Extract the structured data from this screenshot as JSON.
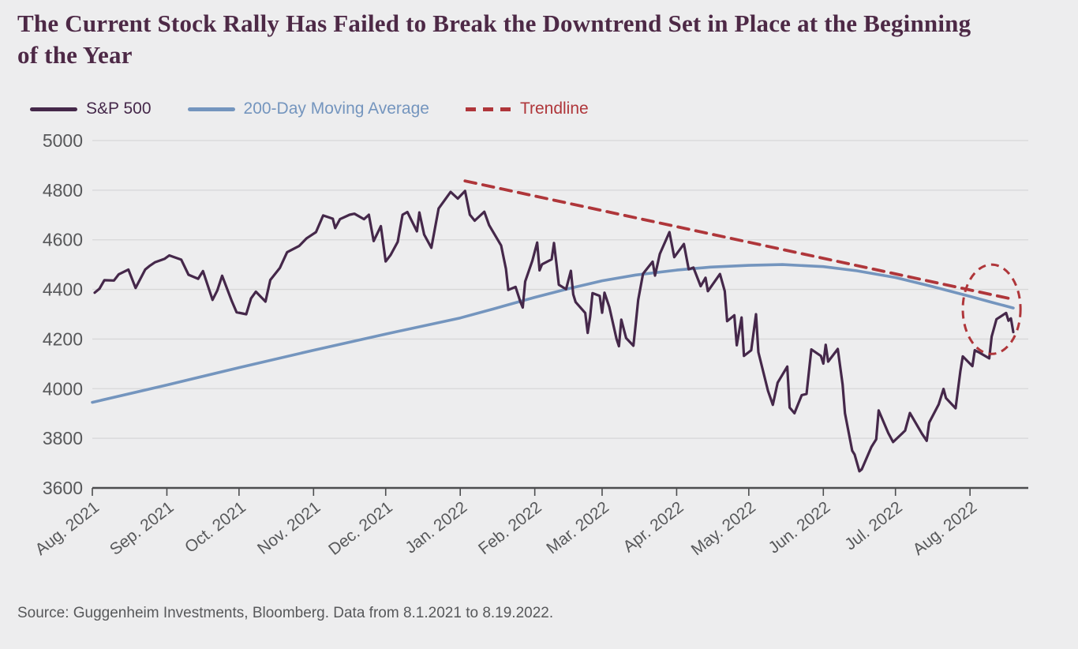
{
  "page": {
    "background": "#EDEDEE"
  },
  "title": {
    "line1": "The Current Stock Rally Has Failed to Break the Downtrend Set in Place at the Beginning",
    "line2": "of the Year"
  },
  "legend": [
    {
      "label": "S&P 500",
      "color": "#45284A",
      "style": "solid"
    },
    {
      "label": "200-Day Moving Average",
      "color": "#7495BE",
      "style": "solid"
    },
    {
      "label": "Trendline",
      "color": "#AF363A",
      "style": "dashed"
    }
  ],
  "source": "Source: Guggenheim Investments, Bloomberg. Data from 8.1.2021 to 8.19.2022.",
  "chart_data": {
    "type": "line",
    "x_range": [
      "2021-08-01",
      "2022-08-19"
    ],
    "ylim": [
      3600,
      5000
    ],
    "y_ticks": [
      5000,
      4800,
      4600,
      4400,
      4200,
      4000,
      3800,
      3600
    ],
    "x_tick_dates": [
      "2021-08-01",
      "2021-09-01",
      "2021-10-01",
      "2021-11-01",
      "2021-12-01",
      "2022-01-01",
      "2022-02-01",
      "2022-03-01",
      "2022-04-01",
      "2022-05-01",
      "2022-06-01",
      "2022-07-01",
      "2022-08-01"
    ],
    "x_tick_labels": [
      "Aug. 2021",
      "Sep. 2021",
      "Oct. 2021",
      "Nov. 2021",
      "Dec. 2021",
      "Jan. 2022",
      "Feb. 2022",
      "Mar. 2022",
      "Apr. 2022",
      "May. 2022",
      "Jun. 2022",
      "Jul. 2022",
      "Aug. 2022"
    ],
    "grid": "horizontal",
    "legend_position": "top-left",
    "series": [
      {
        "name": "200-Day Moving Average",
        "data_name": "moving-average-line",
        "color": "#7495BE",
        "width": 3.6,
        "points": [
          [
            "2021-08-01",
            3945
          ],
          [
            "2021-09-01",
            4015
          ],
          [
            "2021-10-01",
            4085
          ],
          [
            "2021-11-01",
            4155
          ],
          [
            "2021-12-01",
            4220
          ],
          [
            "2022-01-01",
            4285
          ],
          [
            "2022-01-15",
            4322
          ],
          [
            "2022-02-01",
            4368
          ],
          [
            "2022-02-15",
            4403
          ],
          [
            "2022-03-01",
            4435
          ],
          [
            "2022-03-15",
            4458
          ],
          [
            "2022-04-01",
            4478
          ],
          [
            "2022-04-15",
            4490
          ],
          [
            "2022-05-01",
            4497
          ],
          [
            "2022-05-15",
            4500
          ],
          [
            "2022-06-01",
            4492
          ],
          [
            "2022-06-15",
            4475
          ],
          [
            "2022-07-01",
            4448
          ],
          [
            "2022-07-15",
            4415
          ],
          [
            "2022-08-01",
            4372
          ],
          [
            "2022-08-10",
            4348
          ],
          [
            "2022-08-19",
            4325
          ]
        ]
      },
      {
        "name": "Trendline",
        "data_name": "trendline",
        "color": "#AF363A",
        "width": 3.8,
        "dash": "14 9",
        "points": [
          [
            "2022-01-03",
            4837
          ],
          [
            "2022-08-19",
            4360
          ]
        ]
      },
      {
        "name": "S&P 500",
        "data_name": "sp500-line",
        "color": "#45284A",
        "width": 3.2,
        "points": [
          [
            "2021-08-02",
            4387
          ],
          [
            "2021-08-04",
            4403
          ],
          [
            "2021-08-06",
            4437
          ],
          [
            "2021-08-10",
            4436
          ],
          [
            "2021-08-12",
            4461
          ],
          [
            "2021-08-16",
            4480
          ],
          [
            "2021-08-19",
            4406
          ],
          [
            "2021-08-23",
            4480
          ],
          [
            "2021-08-25",
            4496
          ],
          [
            "2021-08-27",
            4509
          ],
          [
            "2021-08-31",
            4523
          ],
          [
            "2021-09-02",
            4537
          ],
          [
            "2021-09-07",
            4520
          ],
          [
            "2021-09-10",
            4459
          ],
          [
            "2021-09-14",
            4443
          ],
          [
            "2021-09-16",
            4474
          ],
          [
            "2021-09-20",
            4358
          ],
          [
            "2021-09-22",
            4396
          ],
          [
            "2021-09-24",
            4455
          ],
          [
            "2021-09-28",
            4353
          ],
          [
            "2021-09-30",
            4308
          ],
          [
            "2021-10-04",
            4300
          ],
          [
            "2021-10-06",
            4364
          ],
          [
            "2021-10-08",
            4391
          ],
          [
            "2021-10-12",
            4351
          ],
          [
            "2021-10-14",
            4438
          ],
          [
            "2021-10-18",
            4487
          ],
          [
            "2021-10-21",
            4550
          ],
          [
            "2021-10-26",
            4575
          ],
          [
            "2021-10-29",
            4605
          ],
          [
            "2021-11-02",
            4631
          ],
          [
            "2021-11-05",
            4698
          ],
          [
            "2021-11-09",
            4685
          ],
          [
            "2021-11-10",
            4647
          ],
          [
            "2021-11-12",
            4683
          ],
          [
            "2021-11-16",
            4701
          ],
          [
            "2021-11-18",
            4705
          ],
          [
            "2021-11-22",
            4683
          ],
          [
            "2021-11-24",
            4701
          ],
          [
            "2021-11-26",
            4595
          ],
          [
            "2021-11-29",
            4655
          ],
          [
            "2021-12-01",
            4513
          ],
          [
            "2021-12-03",
            4538
          ],
          [
            "2021-12-06",
            4592
          ],
          [
            "2021-12-08",
            4701
          ],
          [
            "2021-12-10",
            4712
          ],
          [
            "2021-12-14",
            4634
          ],
          [
            "2021-12-15",
            4710
          ],
          [
            "2021-12-17",
            4621
          ],
          [
            "2021-12-20",
            4568
          ],
          [
            "2021-12-23",
            4726
          ],
          [
            "2021-12-28",
            4793
          ],
          [
            "2021-12-31",
            4766
          ],
          [
            "2022-01-03",
            4797
          ],
          [
            "2022-01-05",
            4701
          ],
          [
            "2022-01-07",
            4677
          ],
          [
            "2022-01-11",
            4713
          ],
          [
            "2022-01-13",
            4659
          ],
          [
            "2022-01-18",
            4577
          ],
          [
            "2022-01-20",
            4483
          ],
          [
            "2022-01-21",
            4398
          ],
          [
            "2022-01-24",
            4410
          ],
          [
            "2022-01-26",
            4350
          ],
          [
            "2022-01-27",
            4327
          ],
          [
            "2022-01-28",
            4432
          ],
          [
            "2022-01-31",
            4516
          ],
          [
            "2022-02-02",
            4589
          ],
          [
            "2022-02-03",
            4477
          ],
          [
            "2022-02-04",
            4501
          ],
          [
            "2022-02-08",
            4521
          ],
          [
            "2022-02-09",
            4587
          ],
          [
            "2022-02-10",
            4504
          ],
          [
            "2022-02-11",
            4419
          ],
          [
            "2022-02-14",
            4401
          ],
          [
            "2022-02-16",
            4475
          ],
          [
            "2022-02-17",
            4380
          ],
          [
            "2022-02-18",
            4349
          ],
          [
            "2022-02-22",
            4305
          ],
          [
            "2022-02-23",
            4225
          ],
          [
            "2022-02-24",
            4288
          ],
          [
            "2022-02-25",
            4385
          ],
          [
            "2022-02-28",
            4374
          ],
          [
            "2022-03-01",
            4306
          ],
          [
            "2022-03-02",
            4387
          ],
          [
            "2022-03-04",
            4329
          ],
          [
            "2022-03-07",
            4201
          ],
          [
            "2022-03-08",
            4171
          ],
          [
            "2022-03-09",
            4278
          ],
          [
            "2022-03-11",
            4204
          ],
          [
            "2022-03-14",
            4173
          ],
          [
            "2022-03-15",
            4262
          ],
          [
            "2022-03-16",
            4358
          ],
          [
            "2022-03-18",
            4463
          ],
          [
            "2022-03-22",
            4512
          ],
          [
            "2022-03-23",
            4456
          ],
          [
            "2022-03-25",
            4543
          ],
          [
            "2022-03-29",
            4631
          ],
          [
            "2022-03-31",
            4530
          ],
          [
            "2022-04-04",
            4583
          ],
          [
            "2022-04-06",
            4481
          ],
          [
            "2022-04-08",
            4488
          ],
          [
            "2022-04-11",
            4413
          ],
          [
            "2022-04-13",
            4447
          ],
          [
            "2022-04-14",
            4393
          ],
          [
            "2022-04-19",
            4462
          ],
          [
            "2022-04-21",
            4393
          ],
          [
            "2022-04-22",
            4272
          ],
          [
            "2022-04-25",
            4296
          ],
          [
            "2022-04-26",
            4175
          ],
          [
            "2022-04-28",
            4287
          ],
          [
            "2022-04-29",
            4132
          ],
          [
            "2022-05-02",
            4155
          ],
          [
            "2022-05-04",
            4300
          ],
          [
            "2022-05-05",
            4147
          ],
          [
            "2022-05-09",
            3991
          ],
          [
            "2022-05-11",
            3935
          ],
          [
            "2022-05-13",
            4024
          ],
          [
            "2022-05-17",
            4089
          ],
          [
            "2022-05-18",
            3924
          ],
          [
            "2022-05-20",
            3901
          ],
          [
            "2022-05-23",
            3974
          ],
          [
            "2022-05-25",
            3979
          ],
          [
            "2022-05-27",
            4158
          ],
          [
            "2022-05-31",
            4132
          ],
          [
            "2022-06-01",
            4101
          ],
          [
            "2022-06-02",
            4177
          ],
          [
            "2022-06-03",
            4109
          ],
          [
            "2022-06-07",
            4160
          ],
          [
            "2022-06-09",
            4017
          ],
          [
            "2022-06-10",
            3901
          ],
          [
            "2022-06-13",
            3750
          ],
          [
            "2022-06-14",
            3735
          ],
          [
            "2022-06-16",
            3667
          ],
          [
            "2022-06-17",
            3675
          ],
          [
            "2022-06-21",
            3765
          ],
          [
            "2022-06-23",
            3796
          ],
          [
            "2022-06-24",
            3912
          ],
          [
            "2022-06-28",
            3821
          ],
          [
            "2022-06-30",
            3785
          ],
          [
            "2022-07-05",
            3831
          ],
          [
            "2022-07-07",
            3902
          ],
          [
            "2022-07-12",
            3819
          ],
          [
            "2022-07-14",
            3790
          ],
          [
            "2022-07-15",
            3863
          ],
          [
            "2022-07-19",
            3937
          ],
          [
            "2022-07-21",
            3999
          ],
          [
            "2022-07-22",
            3962
          ],
          [
            "2022-07-26",
            3921
          ],
          [
            "2022-07-28",
            4072
          ],
          [
            "2022-07-29",
            4130
          ],
          [
            "2022-08-02",
            4091
          ],
          [
            "2022-08-03",
            4155
          ],
          [
            "2022-08-05",
            4145
          ],
          [
            "2022-08-09",
            4122
          ],
          [
            "2022-08-10",
            4210
          ],
          [
            "2022-08-12",
            4280
          ],
          [
            "2022-08-16",
            4305
          ],
          [
            "2022-08-17",
            4274
          ],
          [
            "2022-08-18",
            4283
          ],
          [
            "2022-08-19",
            4228
          ]
        ]
      }
    ],
    "annotation_ellipse": {
      "center_date": "2022-08-10",
      "center_value": 4320,
      "rx_days": 12,
      "ry_value": 180,
      "color": "#AF363A"
    },
    "colors": {
      "background": "#EDEDEE",
      "gridline": "#D7D7D8",
      "axis": "#4C4D4F",
      "tick_text": "#57585A"
    }
  }
}
